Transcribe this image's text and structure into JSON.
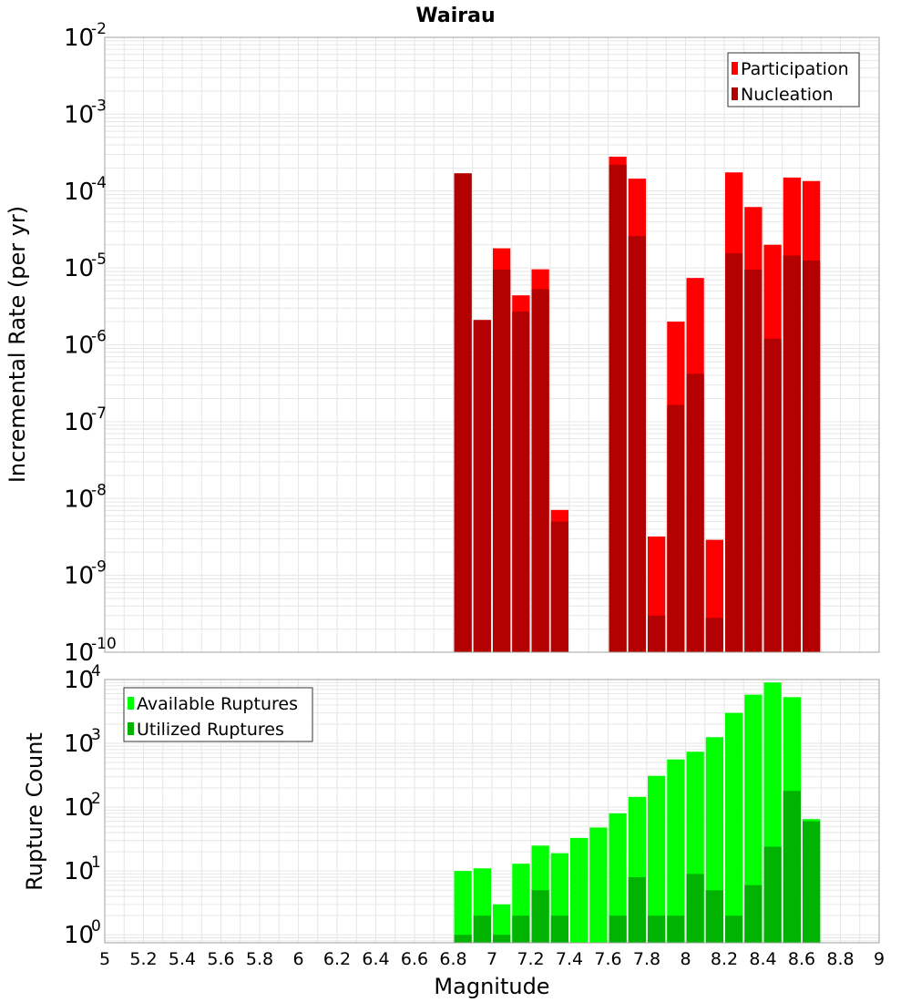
{
  "chart_data": [
    {
      "type": "bar",
      "title": "Wairau",
      "xlabel": "",
      "ylabel": "Incremental Rate (per yr)",
      "yscale": "log",
      "ylim": [
        1e-10,
        0.01
      ],
      "xlim": [
        5,
        9
      ],
      "bin_width": 0.1,
      "y_ticks": [
        {
          "base": "10",
          "exp": "-10"
        },
        {
          "base": "10",
          "exp": "-9"
        },
        {
          "base": "10",
          "exp": "-8"
        },
        {
          "base": "10",
          "exp": "-7"
        },
        {
          "base": "10",
          "exp": "-6"
        },
        {
          "base": "10",
          "exp": "-5"
        },
        {
          "base": "10",
          "exp": "-4"
        },
        {
          "base": "10",
          "exp": "-3"
        },
        {
          "base": "10",
          "exp": "-2"
        }
      ],
      "legend_position": "top-right",
      "series": [
        {
          "name": "Participation",
          "color": "#ff0000",
          "x": [
            6.85,
            6.95,
            7.05,
            7.15,
            7.25,
            7.35,
            7.65,
            7.75,
            7.85,
            7.95,
            8.05,
            8.15,
            8.25,
            8.35,
            8.45,
            8.55,
            8.65
          ],
          "values": [
            0.00017,
            2.1e-06,
            1.8e-05,
            4.4e-06,
            9.6e-06,
            7.1e-09,
            0.00028,
            0.000145,
            3.2e-09,
            2e-06,
            7.4e-06,
            2.9e-09,
            0.000175,
            6.2e-05,
            2e-05,
            0.00015,
            0.000135
          ]
        },
        {
          "name": "Nucleation",
          "color": "#b30000",
          "x": [
            6.85,
            6.95,
            7.05,
            7.15,
            7.25,
            7.35,
            7.65,
            7.75,
            7.85,
            7.95,
            8.05,
            8.15,
            8.25,
            8.35,
            8.45,
            8.55,
            8.65
          ],
          "values": [
            0.00017,
            2.1e-06,
            9.5e-06,
            2.7e-06,
            5.3e-06,
            5e-09,
            0.00022,
            2.6e-05,
            3e-10,
            1.65e-07,
            4.2e-07,
            2.8e-10,
            1.55e-05,
            9.5e-06,
            1.2e-06,
            1.45e-05,
            1.25e-05
          ]
        }
      ]
    },
    {
      "type": "bar",
      "title": "",
      "xlabel": "Magnitude",
      "ylabel": "Rupture Count",
      "yscale": "log",
      "ylim": [
        0.75,
        10000
      ],
      "xlim": [
        5,
        9
      ],
      "bin_width": 0.1,
      "x_ticks": [
        "5",
        "5.2",
        "5.4",
        "5.6",
        "5.8",
        "6",
        "6.2",
        "6.4",
        "6.6",
        "6.8",
        "7",
        "7.2",
        "7.4",
        "7.6",
        "7.8",
        "8",
        "8.2",
        "8.4",
        "8.6",
        "8.8",
        "9"
      ],
      "y_ticks": [
        {
          "base": "10",
          "exp": "0"
        },
        {
          "base": "10",
          "exp": "1"
        },
        {
          "base": "10",
          "exp": "2"
        },
        {
          "base": "10",
          "exp": "3"
        },
        {
          "base": "10",
          "exp": "4"
        }
      ],
      "legend_position": "top-left",
      "series": [
        {
          "name": "Available Ruptures",
          "color": "#00ff00",
          "x": [
            6.85,
            6.95,
            7.05,
            7.15,
            7.25,
            7.35,
            7.45,
            7.55,
            7.65,
            7.75,
            7.85,
            7.95,
            8.05,
            8.15,
            8.25,
            8.35,
            8.45,
            8.55,
            8.65
          ],
          "values": [
            10,
            11,
            3,
            13,
            25,
            19,
            33,
            48,
            80,
            145,
            310,
            560,
            740,
            1250,
            3000,
            5800,
            9000,
            5300,
            65
          ]
        },
        {
          "name": "Utilized Ruptures",
          "color": "#00b300",
          "x": [
            6.85,
            6.95,
            7.05,
            7.15,
            7.25,
            7.35,
            7.45,
            7.55,
            7.65,
            7.75,
            7.85,
            7.95,
            8.05,
            8.15,
            8.25,
            8.35,
            8.45,
            8.55,
            8.65
          ],
          "values": [
            1,
            2,
            1,
            2,
            5,
            2,
            0,
            0,
            2,
            8,
            2,
            2,
            9,
            5,
            2,
            6,
            24,
            180,
            60
          ]
        }
      ]
    }
  ]
}
